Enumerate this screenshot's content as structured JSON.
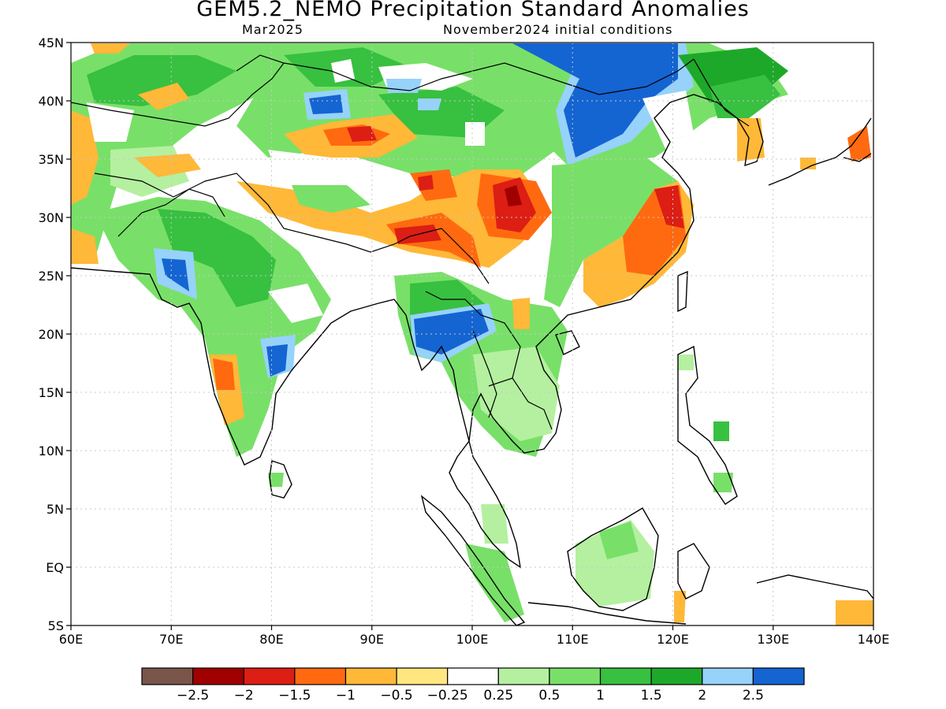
{
  "header": {
    "title": "GEM5.2_NEMO Precipitation Standard Anomalies",
    "month": "Mar2025",
    "init": "November2024 initial conditions"
  },
  "map": {
    "lon_range": [
      60,
      140
    ],
    "lat_range": [
      -5,
      45
    ],
    "lon_ticks": [
      "60E",
      "70E",
      "80E",
      "90E",
      "100E",
      "110E",
      "120E",
      "130E",
      "140E"
    ],
    "lat_ticks": [
      "45N",
      "40N",
      "35N",
      "30N",
      "25N",
      "20N",
      "15N",
      "10N",
      "5N",
      "EQ",
      "5S"
    ],
    "grid": "dotted",
    "regions": [
      {
        "name": "northwest-china-green",
        "class": 1.0,
        "lon": [
          75,
          105
        ],
        "lat": [
          36,
          45
        ]
      },
      {
        "name": "mongolia-blue",
        "class": 2.5,
        "lon": [
          104,
          119
        ],
        "lat": [
          35,
          45
        ]
      },
      {
        "name": "tarim-orange",
        "class": -1.0,
        "lon": [
          86,
          94
        ],
        "lat": [
          34,
          38
        ]
      },
      {
        "name": "tibet-orange",
        "class": -1.0,
        "lon": [
          85,
          106
        ],
        "lat": [
          27,
          34
        ]
      },
      {
        "name": "sichuan-red",
        "class": -2.0,
        "lon": [
          101,
          106
        ],
        "lat": [
          29,
          32
        ]
      },
      {
        "name": "east-china-orange",
        "class": -1.5,
        "lon": [
          111,
          122
        ],
        "lat": [
          23,
          33
        ]
      },
      {
        "name": "lower-yangtze-red",
        "class": -2.0,
        "lon": [
          119,
          122
        ],
        "lat": [
          29,
          32
        ]
      },
      {
        "name": "india-green",
        "class": 1.0,
        "lon": [
          70,
          88
        ],
        "lat": [
          13,
          30
        ]
      },
      {
        "name": "india-blue",
        "class": 2.5,
        "lon": [
          80,
          83
        ],
        "lat": [
          15,
          19
        ]
      },
      {
        "name": "myanmar-blue",
        "class": 2.5,
        "lon": [
          94,
          101
        ],
        "lat": [
          18,
          22
        ]
      },
      {
        "name": "indochina-green",
        "class": 0.5,
        "lon": [
          98,
          109
        ],
        "lat": [
          10,
          22
        ]
      },
      {
        "name": "borneo-green",
        "class": 0.5,
        "lon": [
          110,
          119
        ],
        "lat": [
          -2,
          5
        ]
      },
      {
        "name": "sumatra-green",
        "class": 0.5,
        "lon": [
          95,
          106
        ],
        "lat": [
          -4,
          5
        ]
      },
      {
        "name": "iran-orange",
        "class": -0.5,
        "lon": [
          60,
          66
        ],
        "lat": [
          26,
          37
        ]
      },
      {
        "name": "korea-orange",
        "class": -0.5,
        "lon": [
          126,
          128
        ],
        "lat": [
          34,
          37
        ]
      }
    ]
  },
  "colorbar": {
    "colors": [
      "#7a5549",
      "#a00000",
      "#dc1e14",
      "#ff6a10",
      "#ffb838",
      "#ffe680",
      "#ffffff",
      "#b4f0a0",
      "#78e068",
      "#38c040",
      "#1ea82a",
      "#96d2fa",
      "#1464d2"
    ],
    "labels": [
      "−2.5",
      "−2",
      "−1.5",
      "−1",
      "−0.5",
      "−0.25",
      "0.25",
      "0.5",
      "1",
      "1.5",
      "2",
      "2.5"
    ]
  }
}
